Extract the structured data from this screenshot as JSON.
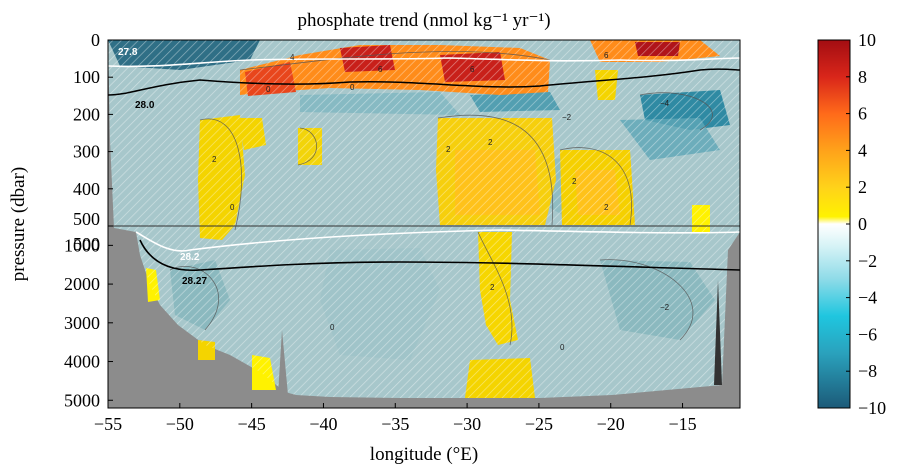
{
  "chart_data": {
    "type": "heatmap",
    "title": "phosphate trend (nmol kg⁻¹ yr⁻¹)",
    "xlabel": "longitude (°E)",
    "ylabel": "pressure (dbar)",
    "xlim": [
      -55,
      -11
    ],
    "x_ticks": [
      "−55",
      "−50",
      "−45",
      "−40",
      "−35",
      "−30",
      "−25",
      "−20",
      "−15"
    ],
    "x_tick_values": [
      -55,
      -50,
      -45,
      -40,
      -35,
      -30,
      -25,
      -20,
      -15
    ],
    "upper_panel": {
      "ylim": [
        0,
        500
      ],
      "y_ticks": [
        "0",
        "100",
        "200",
        "300",
        "400",
        "500"
      ],
      "y_tick_values": [
        0,
        100,
        200,
        300,
        400,
        500
      ]
    },
    "lower_panel": {
      "ylim": [
        500,
        5200
      ],
      "y_ticks": [
        "500",
        "1000",
        "2000",
        "3000",
        "4000",
        "5000"
      ],
      "y_tick_values": [
        500,
        1000,
        2000,
        3000,
        4000,
        5000
      ]
    },
    "colorbar": {
      "range": [
        -10,
        10
      ],
      "ticks": [
        "10",
        "8",
        "6",
        "4",
        "2",
        "0",
        "−2",
        "−4",
        "−6",
        "−8",
        "−10"
      ],
      "tick_values": [
        10,
        8,
        6,
        4,
        2,
        0,
        -2,
        -4,
        -6,
        -8,
        -10
      ],
      "colors": [
        "#1d5f7d",
        "#2891a9",
        "#48c3d8",
        "#aee6ee",
        "#ffffff",
        "#fff200",
        "#ffc21a",
        "#ff8c1a",
        "#e8461c",
        "#a30d12"
      ]
    },
    "isopycnals": [
      {
        "label": "27.8",
        "color": "#ffffff"
      },
      {
        "label": "28.0",
        "color": "#000000"
      },
      {
        "label": "28.2",
        "color": "#ffffff"
      },
      {
        "label": "28.27",
        "color": "#000000"
      }
    ],
    "contour_labels": [
      "4",
      "2",
      "0",
      "6",
      "−2",
      "−4"
    ],
    "land_color": "#8c8c8c"
  }
}
